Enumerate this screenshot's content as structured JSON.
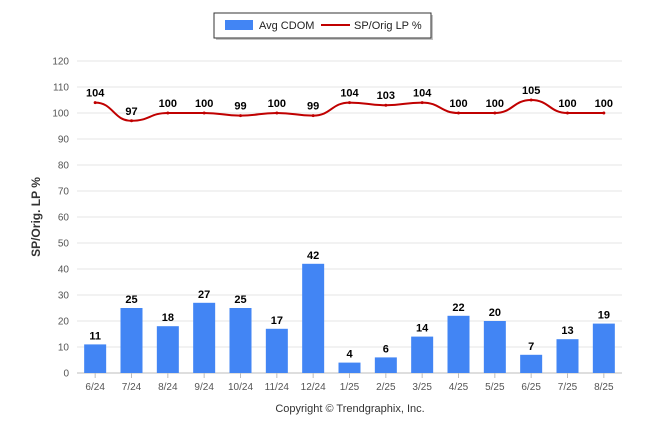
{
  "chart_data": {
    "type": "bar",
    "categories": [
      "6/24",
      "7/24",
      "8/24",
      "9/24",
      "10/24",
      "11/24",
      "12/24",
      "1/25",
      "2/25",
      "3/25",
      "4/25",
      "5/25",
      "6/25",
      "7/25",
      "8/25"
    ],
    "series": [
      {
        "name": "Avg CDOM",
        "type": "bar",
        "color": "#4285f4",
        "values": [
          11,
          25,
          18,
          27,
          25,
          17,
          42,
          4,
          6,
          14,
          22,
          20,
          7,
          13,
          19
        ]
      },
      {
        "name": "SP/Orig LP %",
        "type": "line",
        "color": "#c00000",
        "values": [
          104,
          97,
          100,
          100,
          99,
          100,
          99,
          104,
          103,
          104,
          100,
          100,
          105,
          100,
          100
        ]
      }
    ],
    "ylabel": "SP/Orig. LP %",
    "ylim": [
      0,
      120
    ],
    "yticks": [
      0,
      10,
      20,
      30,
      40,
      50,
      60,
      70,
      80,
      90,
      100,
      110,
      120
    ],
    "grid": true,
    "legend_position": "top-center",
    "data_labels": true
  },
  "footer": {
    "copyright": "Copyright © Trendgraphix, Inc."
  }
}
